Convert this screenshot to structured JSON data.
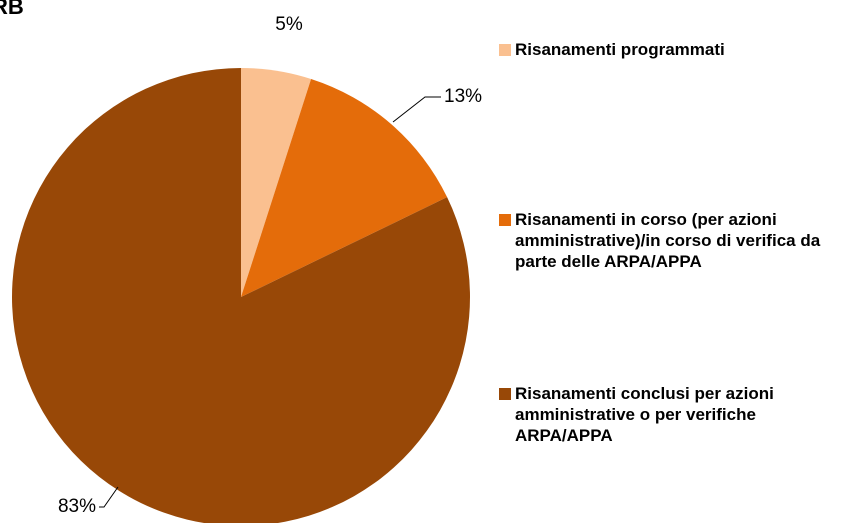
{
  "chart_data": {
    "type": "pie",
    "title": "RB",
    "categories": [
      "Risanamenti programmati",
      "Risanamenti in corso (per azioni amministrative)/in corso di verifica da parte delle ARPA/APPA",
      "Risanamenti conclusi per azioni amministrative o per verifiche ARPA/APPA"
    ],
    "values": [
      5,
      13,
      83
    ],
    "value_labels": [
      "5%",
      "13%",
      "83%"
    ],
    "colors": [
      "#fac090",
      "#e46c0a",
      "#984807"
    ]
  }
}
